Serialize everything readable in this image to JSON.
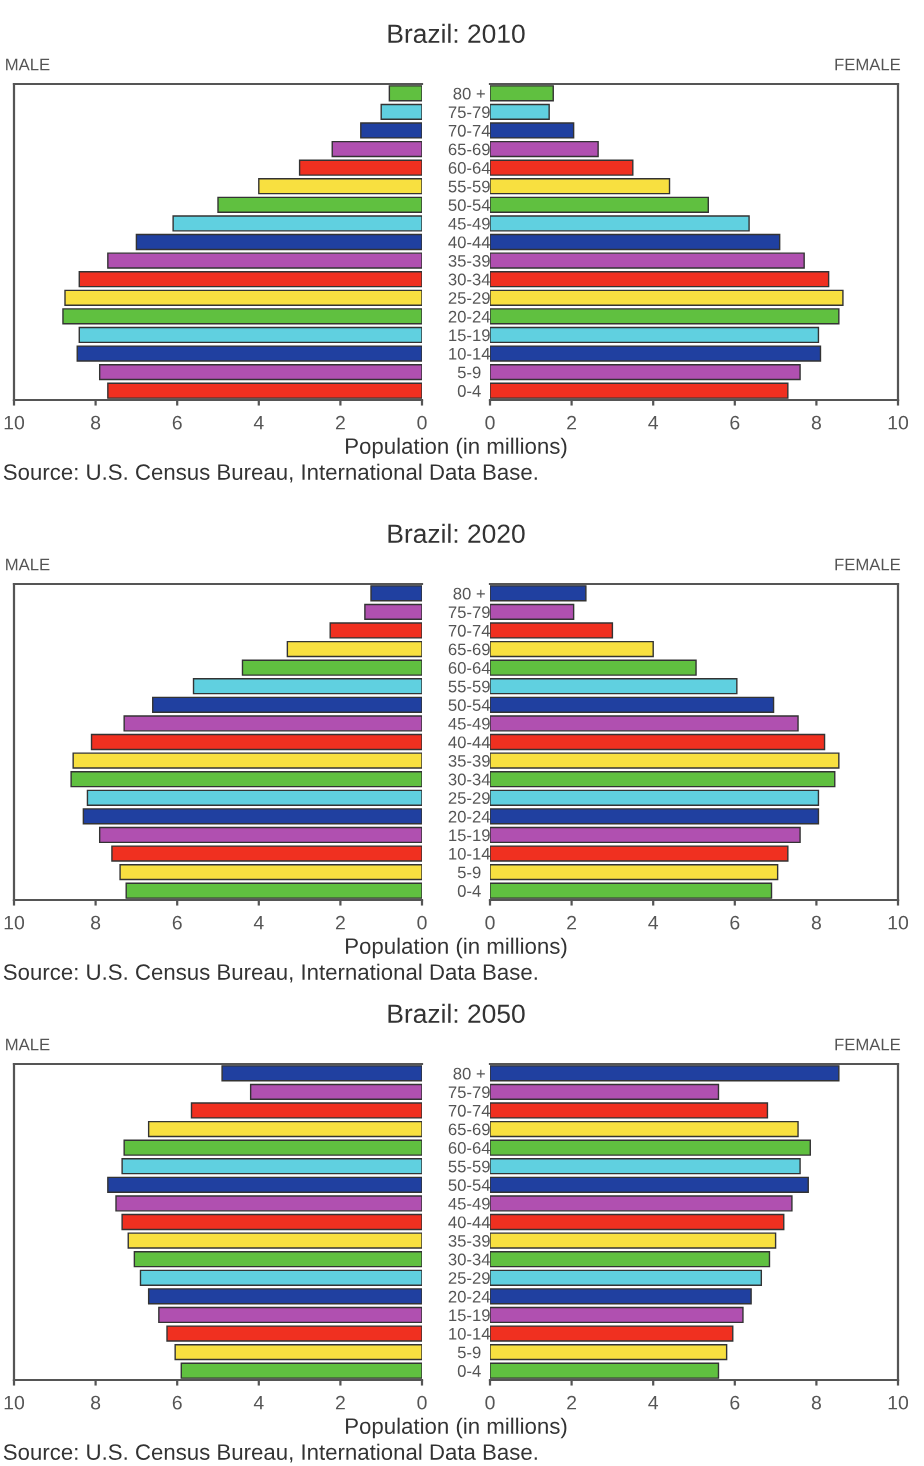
{
  "chart_data": [
    {
      "type": "bar",
      "orientation": "horizontal",
      "title": "Brazil: 2010",
      "subtitle": "MALE",
      "xlabel": "Population (in millions)",
      "annotations": [
        "Source: U.S. Census Bureau, International Data Base."
      ],
      "categories": [
        "80 +",
        "75-79",
        "70-74",
        "65-69",
        "60-64",
        "55-59",
        "50-54",
        "45-49",
        "40-44",
        "35-39",
        "30-34",
        "25-29",
        "20-24",
        "15-19",
        "10-14",
        "5-9",
        "0-4"
      ],
      "values": [
        0.8,
        1.0,
        1.5,
        2.2,
        3.0,
        4.0,
        5.0,
        6.1,
        7.0,
        7.7,
        8.4,
        8.75,
        8.8,
        8.4,
        8.45,
        7.9,
        7.7
      ],
      "colors": [
        "#60c040",
        "#60d0e0",
        "#2040a0",
        "#b050b0",
        "#f03020",
        "#f8e040",
        "#60c040",
        "#60d0e0",
        "#2040a0",
        "#b050b0",
        "#f03020",
        "#f8e040",
        "#60c040",
        "#60d0e0",
        "#2040a0",
        "#b050b0",
        "#f03020"
      ],
      "xlim": [
        10,
        0
      ],
      "xticks": [
        10,
        8,
        6,
        4,
        2,
        0
      ]
    },
    {
      "type": "bar",
      "orientation": "horizontal",
      "subtitle": "FEMALE",
      "categories": [
        null,
        null,
        null,
        null,
        null,
        null,
        null,
        null,
        null,
        null,
        null,
        null,
        null,
        null,
        null,
        null,
        null
      ],
      "values": [
        1.55,
        1.45,
        2.05,
        2.65,
        3.5,
        4.4,
        5.35,
        6.35,
        7.1,
        7.7,
        8.3,
        8.65,
        8.55,
        8.05,
        8.1,
        7.6,
        7.3
      ],
      "colors": [
        "#60c040",
        "#60d0e0",
        "#2040a0",
        "#b050b0",
        "#f03020",
        "#f8e040",
        "#60c040",
        "#60d0e0",
        "#2040a0",
        "#b050b0",
        "#f03020",
        "#f8e040",
        "#60c040",
        "#60d0e0",
        "#2040a0",
        "#b050b0",
        "#f03020"
      ],
      "xlim": [
        0,
        10
      ],
      "xticks": [
        0,
        2,
        4,
        6,
        8,
        10
      ]
    },
    {
      "type": "bar",
      "orientation": "horizontal",
      "title": "Brazil: 2020",
      "subtitle": "MALE",
      "xlabel": "Population (in millions)",
      "annotations": [
        "Source: U.S. Census Bureau, International Data Base."
      ],
      "categories": [
        "80 +",
        "75-79",
        "70-74",
        "65-69",
        "60-64",
        "55-59",
        "50-54",
        "45-49",
        "40-44",
        "35-39",
        "30-34",
        "25-29",
        "20-24",
        "15-19",
        "10-14",
        "5-9",
        "0-4"
      ],
      "values": [
        1.25,
        1.4,
        2.25,
        3.3,
        4.4,
        5.6,
        6.6,
        7.3,
        8.1,
        8.55,
        8.6,
        8.2,
        8.3,
        7.9,
        7.6,
        7.4,
        7.25
      ],
      "colors": [
        "#2040a0",
        "#b050b0",
        "#f03020",
        "#f8e040",
        "#60c040",
        "#60d0e0",
        "#2040a0",
        "#b050b0",
        "#f03020",
        "#f8e040",
        "#60c040",
        "#60d0e0",
        "#2040a0",
        "#b050b0",
        "#f03020",
        "#f8e040",
        "#60c040"
      ],
      "xlim": [
        10,
        0
      ],
      "xticks": [
        10,
        8,
        6,
        4,
        2,
        0
      ]
    },
    {
      "type": "bar",
      "orientation": "horizontal",
      "subtitle": "FEMALE",
      "categories": [
        null,
        null,
        null,
        null,
        null,
        null,
        null,
        null,
        null,
        null,
        null,
        null,
        null,
        null,
        null,
        null,
        null
      ],
      "values": [
        2.35,
        2.05,
        3.0,
        4.0,
        5.05,
        6.05,
        6.95,
        7.55,
        8.2,
        8.55,
        8.45,
        8.05,
        8.05,
        7.6,
        7.3,
        7.05,
        6.9
      ],
      "colors": [
        "#2040a0",
        "#b050b0",
        "#f03020",
        "#f8e040",
        "#60c040",
        "#60d0e0",
        "#2040a0",
        "#b050b0",
        "#f03020",
        "#f8e040",
        "#60c040",
        "#60d0e0",
        "#2040a0",
        "#b050b0",
        "#f03020",
        "#f8e040",
        "#60c040"
      ],
      "xlim": [
        0,
        10
      ],
      "xticks": [
        0,
        2,
        4,
        6,
        8,
        10
      ]
    },
    {
      "type": "bar",
      "orientation": "horizontal",
      "title": "Brazil: 2050",
      "subtitle": "MALE",
      "xlabel": "Population (in millions)",
      "annotations": [
        "Source: U.S. Census Bureau, International Data Base."
      ],
      "categories": [
        "80 +",
        "75-79",
        "70-74",
        "65-69",
        "60-64",
        "55-59",
        "50-54",
        "45-49",
        "40-44",
        "35-39",
        "30-34",
        "25-29",
        "20-24",
        "15-19",
        "10-14",
        "5-9",
        "0-4"
      ],
      "values": [
        4.9,
        4.2,
        5.65,
        6.7,
        7.3,
        7.35,
        7.7,
        7.5,
        7.35,
        7.2,
        7.05,
        6.9,
        6.7,
        6.45,
        6.25,
        6.05,
        5.9
      ],
      "colors": [
        "#2040a0",
        "#b050b0",
        "#f03020",
        "#f8e040",
        "#60c040",
        "#60d0e0",
        "#2040a0",
        "#b050b0",
        "#f03020",
        "#f8e040",
        "#60c040",
        "#60d0e0",
        "#2040a0",
        "#b050b0",
        "#f03020",
        "#f8e040",
        "#60c040"
      ],
      "xlim": [
        10,
        0
      ],
      "xticks": [
        10,
        8,
        6,
        4,
        2,
        0
      ]
    },
    {
      "type": "bar",
      "orientation": "horizontal",
      "subtitle": "FEMALE",
      "categories": [
        null,
        null,
        null,
        null,
        null,
        null,
        null,
        null,
        null,
        null,
        null,
        null,
        null,
        null,
        null,
        null,
        null
      ],
      "values": [
        8.55,
        5.6,
        6.8,
        7.55,
        7.85,
        7.6,
        7.8,
        7.4,
        7.2,
        7.0,
        6.85,
        6.65,
        6.4,
        6.2,
        5.95,
        5.8,
        5.6
      ],
      "colors": [
        "#2040a0",
        "#b050b0",
        "#f03020",
        "#f8e040",
        "#60c040",
        "#60d0e0",
        "#2040a0",
        "#b050b0",
        "#f03020",
        "#f8e040",
        "#60c040",
        "#60d0e0",
        "#2040a0",
        "#b050b0",
        "#f03020",
        "#f8e040",
        "#60c040"
      ],
      "xlim": [
        0,
        10
      ],
      "xticks": [
        0,
        2,
        4,
        6,
        8,
        10
      ]
    }
  ]
}
